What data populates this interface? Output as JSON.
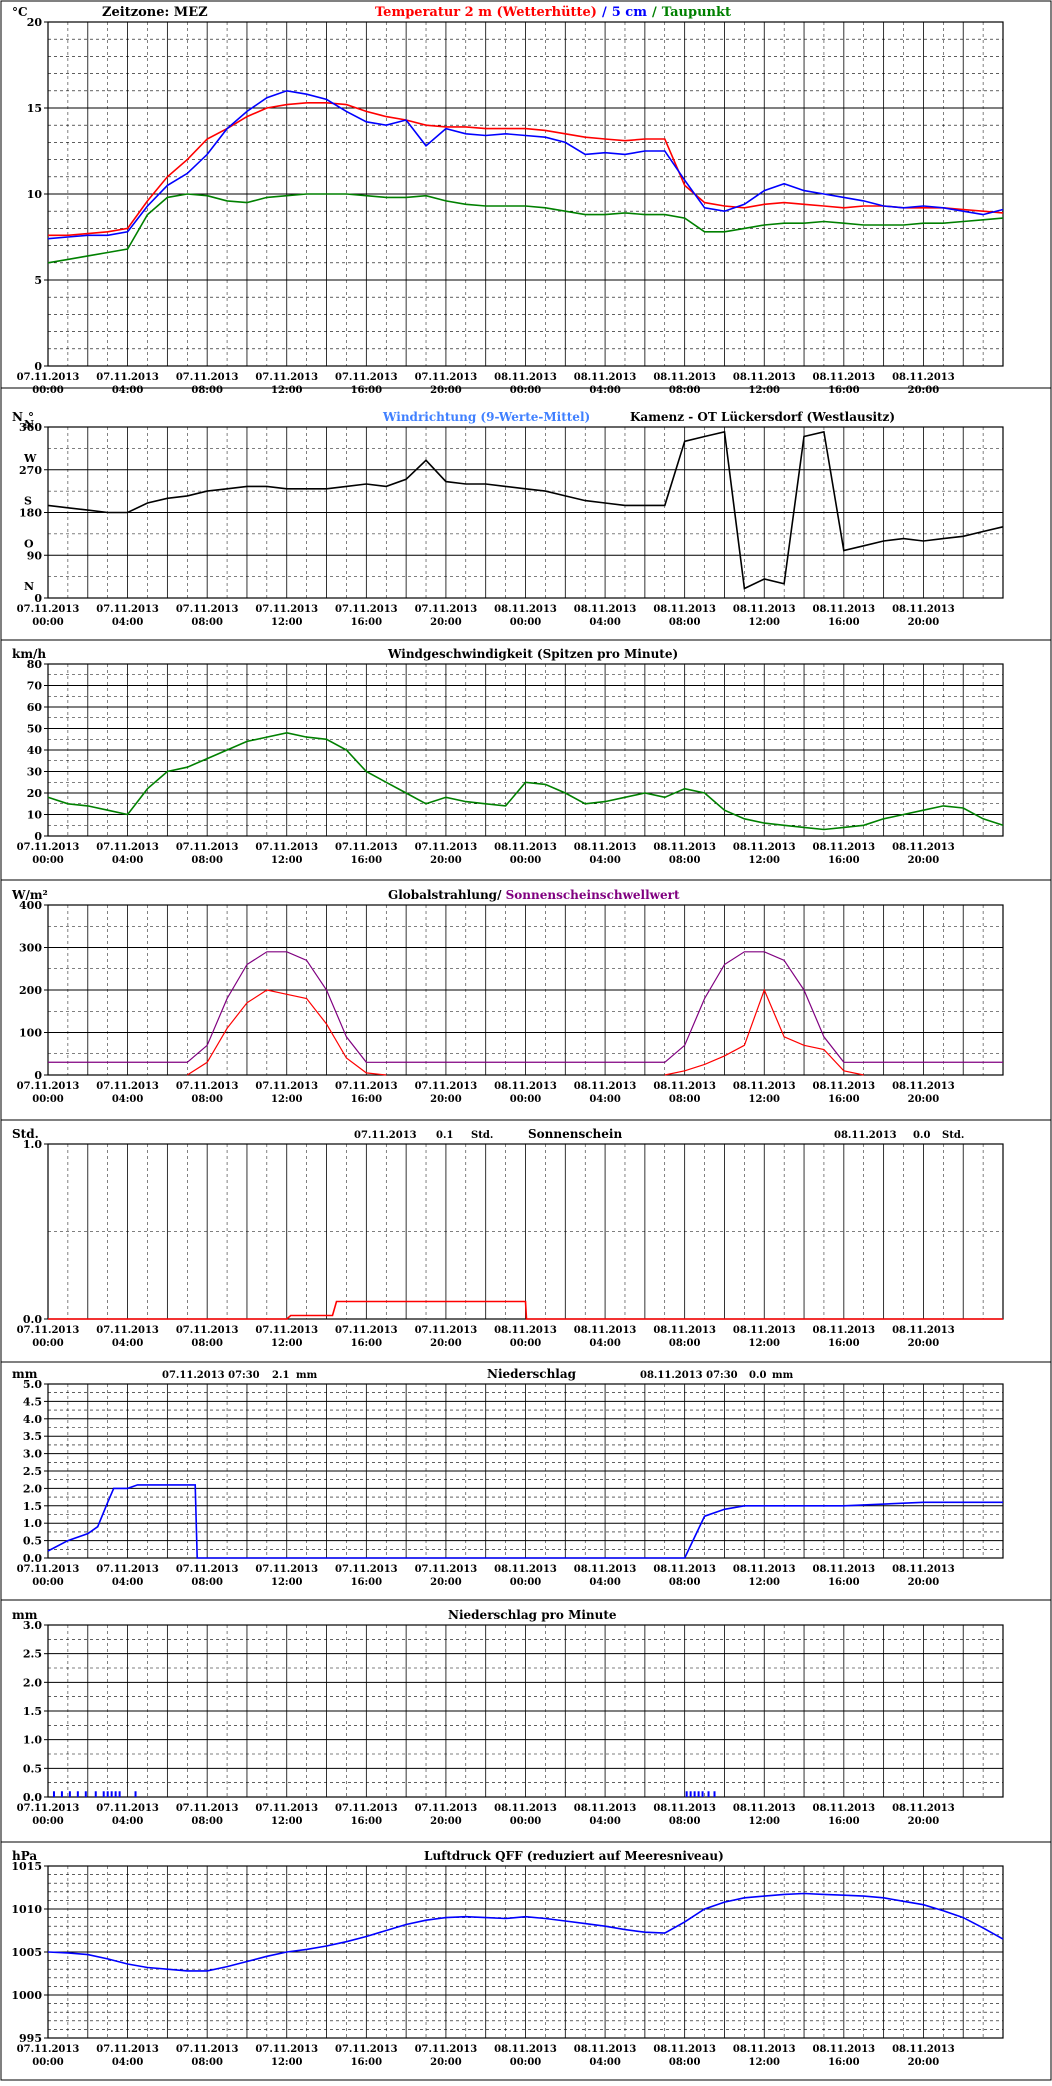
{
  "xticks": [
    {
      "d": "07.11.2013",
      "t": "00:00"
    },
    {
      "d": "07.11.2013",
      "t": "04:00"
    },
    {
      "d": "07.11.2013",
      "t": "08:00"
    },
    {
      "d": "07.11.2013",
      "t": "12:00"
    },
    {
      "d": "07.11.2013",
      "t": "16:00"
    },
    {
      "d": "07.11.2013",
      "t": "20:00"
    },
    {
      "d": "08.11.2013",
      "t": "00:00"
    },
    {
      "d": "08.11.2013",
      "t": "04:00"
    },
    {
      "d": "08.11.2013",
      "t": "08:00"
    },
    {
      "d": "08.11.2013",
      "t": "12:00"
    },
    {
      "d": "08.11.2013",
      "t": "16:00"
    },
    {
      "d": "08.11.2013",
      "t": "20:00"
    }
  ],
  "colors": {
    "red": "#ff0000",
    "blue": "#0000ff",
    "green": "#008000",
    "purple": "#800080",
    "lightblue": "#4080ff",
    "black": "#000000"
  },
  "chart_data": [
    {
      "type": "line",
      "unit": "°C",
      "timezone_label": "Zeitzone: MEZ",
      "title_parts": [
        "Temperatur 2 m (Wetterhütte)",
        "/",
        "5 cm",
        "/",
        "Taupunkt"
      ],
      "ylim": [
        0,
        20
      ],
      "yticks": [
        0,
        5,
        10,
        15,
        20
      ],
      "x_hours": [
        0,
        1,
        2,
        3,
        4,
        5,
        6,
        7,
        8,
        9,
        10,
        11,
        12,
        13,
        14,
        15,
        16,
        17,
        18,
        19,
        20,
        21,
        22,
        23,
        24,
        25,
        26,
        27,
        28,
        29,
        30,
        31,
        32,
        33,
        34,
        35,
        36,
        37,
        38,
        39,
        40,
        41,
        42,
        43,
        44,
        45,
        46,
        47,
        48
      ],
      "series": [
        {
          "name": "Temperatur 2 m (Wetterhütte)",
          "color": "red",
          "values": [
            7.6,
            7.6,
            7.7,
            7.8,
            8.0,
            9.6,
            11.0,
            12.0,
            13.2,
            13.8,
            14.5,
            15.0,
            15.2,
            15.3,
            15.3,
            15.2,
            14.8,
            14.5,
            14.3,
            14.0,
            13.9,
            13.9,
            13.8,
            13.8,
            13.8,
            13.7,
            13.5,
            13.3,
            13.2,
            13.1,
            13.2,
            13.2,
            10.5,
            9.5,
            9.3,
            9.2,
            9.4,
            9.5,
            9.4,
            9.3,
            9.2,
            9.3,
            9.3,
            9.2,
            9.2,
            9.2,
            9.1,
            9.0,
            8.9
          ]
        },
        {
          "name": "5 cm",
          "color": "blue",
          "values": [
            7.4,
            7.5,
            7.6,
            7.6,
            7.8,
            9.3,
            10.5,
            11.2,
            12.3,
            13.8,
            14.8,
            15.6,
            16.0,
            15.8,
            15.5,
            14.8,
            14.2,
            14.0,
            14.3,
            12.8,
            13.8,
            13.5,
            13.4,
            13.5,
            13.4,
            13.3,
            13.0,
            12.3,
            12.4,
            12.3,
            12.5,
            12.5,
            10.8,
            9.2,
            9.0,
            9.4,
            10.2,
            10.6,
            10.2,
            10.0,
            9.8,
            9.6,
            9.3,
            9.2,
            9.3,
            9.2,
            9.0,
            8.8,
            9.1
          ]
        },
        {
          "name": "Taupunkt",
          "color": "green",
          "values": [
            6.0,
            6.2,
            6.4,
            6.6,
            6.8,
            8.8,
            9.8,
            10.0,
            9.9,
            9.6,
            9.5,
            9.8,
            9.9,
            10.0,
            10.0,
            10.0,
            9.9,
            9.8,
            9.8,
            9.9,
            9.6,
            9.4,
            9.3,
            9.3,
            9.3,
            9.2,
            9.0,
            8.8,
            8.8,
            8.9,
            8.8,
            8.8,
            8.6,
            7.8,
            7.8,
            8.0,
            8.2,
            8.3,
            8.3,
            8.4,
            8.3,
            8.2,
            8.2,
            8.2,
            8.3,
            8.3,
            8.4,
            8.5,
            8.6
          ]
        }
      ]
    },
    {
      "type": "line",
      "unit": "N",
      "unit_mark": "°",
      "title": "Windrichtung (9-Werte-Mittel)",
      "station": "Kamenz - OT Lückersdorf (Westlausitz)",
      "ylim": [
        0,
        360
      ],
      "yticks": [
        0,
        90,
        180,
        270,
        360
      ],
      "compass": [
        {
          "v": 360,
          "l": "N"
        },
        {
          "v": 270,
          "l": "W"
        },
        {
          "v": 180,
          "l": "S"
        },
        {
          "v": 90,
          "l": "O"
        },
        {
          "v": 0,
          "l": "N"
        }
      ],
      "x_hours": [
        0,
        1,
        2,
        3,
        4,
        5,
        6,
        7,
        8,
        9,
        10,
        11,
        12,
        13,
        14,
        15,
        16,
        17,
        18,
        19,
        20,
        21,
        22,
        23,
        24,
        25,
        26,
        27,
        28,
        29,
        30,
        31,
        32,
        33,
        34,
        35,
        36,
        37,
        38,
        39,
        40,
        41,
        42,
        43,
        44,
        45,
        46,
        47,
        48
      ],
      "series": [
        {
          "name": "Windrichtung (9-Werte-Mittel)",
          "color": "black",
          "values": [
            195,
            190,
            185,
            180,
            180,
            200,
            210,
            215,
            225,
            230,
            235,
            235,
            230,
            230,
            230,
            235,
            240,
            235,
            250,
            290,
            245,
            240,
            240,
            235,
            230,
            225,
            215,
            205,
            200,
            195,
            195,
            195,
            330,
            340,
            350,
            20,
            40,
            30,
            340,
            350,
            100,
            110,
            120,
            125,
            120,
            125,
            130,
            140,
            150
          ]
        }
      ]
    },
    {
      "type": "line",
      "unit": "km/h",
      "title": "Windgeschwindigkeit (Spitzen pro Minute)",
      "ylim": [
        0,
        80
      ],
      "yticks": [
        0,
        10,
        20,
        30,
        40,
        50,
        60,
        70,
        80
      ],
      "x_hours": [
        0,
        1,
        2,
        3,
        4,
        5,
        6,
        7,
        8,
        9,
        10,
        11,
        12,
        13,
        14,
        15,
        16,
        17,
        18,
        19,
        20,
        21,
        22,
        23,
        24,
        25,
        26,
        27,
        28,
        29,
        30,
        31,
        32,
        33,
        34,
        35,
        36,
        37,
        38,
        39,
        40,
        41,
        42,
        43,
        44,
        45,
        46,
        47,
        48
      ],
      "series": [
        {
          "name": "Windgeschwindigkeit (Spitzen pro Minute)",
          "color": "green",
          "values": [
            18,
            15,
            14,
            12,
            10,
            22,
            30,
            32,
            36,
            40,
            44,
            46,
            48,
            46,
            45,
            40,
            30,
            25,
            20,
            15,
            18,
            16,
            15,
            14,
            25,
            24,
            20,
            15,
            16,
            18,
            20,
            18,
            22,
            20,
            12,
            8,
            6,
            5,
            4,
            3,
            4,
            5,
            8,
            10,
            12,
            14,
            13,
            8,
            5
          ]
        }
      ]
    },
    {
      "type": "line",
      "unit": "W/m²",
      "title_parts": [
        "Globalstrahlung",
        "/ ",
        "Sonnenscheinschwellwert"
      ],
      "ylim": [
        0,
        400
      ],
      "yticks": [
        0,
        100,
        200,
        300,
        400
      ],
      "x_hours": [
        7,
        8,
        9,
        10,
        11,
        12,
        13,
        14,
        15,
        16,
        17
      ],
      "series": [
        {
          "name": "Globalstrahlung",
          "color": "red",
          "values": [
            0,
            30,
            110,
            170,
            200,
            190,
            180,
            120,
            40,
            5,
            0
          ]
        },
        {
          "name": "Sonnenscheinschwellwert",
          "color": "purple",
          "values": [
            30,
            70,
            180,
            260,
            290,
            290,
            270,
            200,
            90,
            30,
            30
          ]
        }
      ],
      "day2": {
        "x_hours": [
          31,
          32,
          33,
          34,
          35,
          36,
          37,
          38,
          39,
          40,
          41
        ],
        "Globalstrahlung": [
          0,
          10,
          25,
          45,
          70,
          200,
          90,
          70,
          60,
          10,
          0
        ],
        "Sonnenscheinschwellwert": [
          30,
          70,
          180,
          260,
          290,
          290,
          270,
          200,
          90,
          30,
          30
        ]
      },
      "threshold_baseline": 30
    },
    {
      "type": "line",
      "unit": "Std.",
      "title": "Sonnenschein",
      "ylim": [
        0,
        1.0
      ],
      "yticks": [
        0.0,
        1.0
      ],
      "summary": [
        {
          "date": "07.11.2013",
          "value": "0.1",
          "unit": "Std."
        },
        {
          "date": "08.11.2013",
          "value": "0.0",
          "unit": "Std."
        }
      ],
      "x_hours": [
        0,
        12,
        12.2,
        14.3,
        14.5,
        24,
        24.05,
        48
      ],
      "series": [
        {
          "name": "Sonnenschein",
          "color": "red",
          "values": [
            0,
            0,
            0.02,
            0.02,
            0.1,
            0.1,
            0,
            0
          ]
        }
      ]
    },
    {
      "type": "line",
      "unit": "mm",
      "title": "Niederschlag",
      "ylim": [
        0,
        5.0
      ],
      "yticks": [
        0.0,
        0.5,
        1.0,
        1.5,
        2.0,
        2.5,
        3.0,
        3.5,
        4.0,
        4.5,
        5.0
      ],
      "summary": [
        {
          "date": "07.11.2013 07:30",
          "value": "2.1",
          "unit": "mm"
        },
        {
          "date": "08.11.2013 07:30",
          "value": "0.0",
          "unit": "mm"
        }
      ],
      "x_hours": [
        0,
        1,
        2,
        2.5,
        3,
        3.3,
        4,
        4.5,
        7.4,
        7.5,
        32,
        32.5,
        33,
        34,
        35,
        40,
        44,
        48
      ],
      "series": [
        {
          "name": "Niederschlag",
          "color": "blue",
          "values": [
            0.2,
            0.5,
            0.7,
            0.9,
            1.6,
            2.0,
            2.0,
            2.1,
            2.1,
            0,
            0,
            0.6,
            1.2,
            1.4,
            1.5,
            1.5,
            1.6,
            1.6
          ]
        }
      ]
    },
    {
      "type": "bar",
      "unit": "mm",
      "title": "Niederschlag pro Minute",
      "ylim": [
        0,
        3.0
      ],
      "yticks": [
        0.0,
        0.5,
        1.0,
        1.5,
        2.0,
        2.5,
        3.0
      ],
      "x_hours": [
        0.3,
        0.7,
        1.1,
        1.5,
        1.9,
        2.4,
        2.8,
        3.0,
        3.2,
        3.4,
        3.6,
        4.4,
        32.1,
        32.3,
        32.5,
        32.7,
        32.9,
        33.2,
        33.5
      ],
      "series": [
        {
          "name": "Niederschlag pro Minute",
          "color": "blue",
          "values": [
            0.1,
            0.1,
            0.1,
            0.1,
            0.1,
            0.1,
            0.1,
            0.1,
            0.1,
            0.1,
            0.1,
            0.1,
            0.1,
            0.1,
            0.1,
            0.1,
            0.1,
            0.1,
            0.1
          ]
        }
      ]
    },
    {
      "type": "line",
      "unit": "hPa",
      "title": "Luftdruck QFF (reduziert auf Meeresniveau)",
      "ylim": [
        995,
        1015
      ],
      "yticks": [
        995,
        1000,
        1005,
        1010,
        1015
      ],
      "x_hours": [
        0,
        1,
        2,
        3,
        4,
        5,
        6,
        7,
        8,
        9,
        10,
        11,
        12,
        13,
        14,
        15,
        16,
        17,
        18,
        19,
        20,
        21,
        22,
        23,
        24,
        25,
        26,
        27,
        28,
        29,
        30,
        31,
        32,
        33,
        34,
        35,
        36,
        37,
        38,
        39,
        40,
        41,
        42,
        43,
        44,
        45,
        46,
        47,
        48
      ],
      "series": [
        {
          "name": "Luftdruck QFF",
          "color": "blue",
          "values": [
            1005.0,
            1004.9,
            1004.7,
            1004.2,
            1003.6,
            1003.2,
            1003.0,
            1002.8,
            1002.8,
            1003.3,
            1003.9,
            1004.5,
            1005.0,
            1005.3,
            1005.7,
            1006.2,
            1006.8,
            1007.5,
            1008.2,
            1008.7,
            1009.0,
            1009.1,
            1009.0,
            1008.9,
            1009.1,
            1008.9,
            1008.6,
            1008.3,
            1008.0,
            1007.6,
            1007.3,
            1007.2,
            1008.5,
            1010.0,
            1010.8,
            1011.3,
            1011.5,
            1011.7,
            1011.8,
            1011.7,
            1011.6,
            1011.5,
            1011.3,
            1010.9,
            1010.5,
            1009.8,
            1009.0,
            1007.8,
            1006.5
          ]
        }
      ]
    }
  ]
}
